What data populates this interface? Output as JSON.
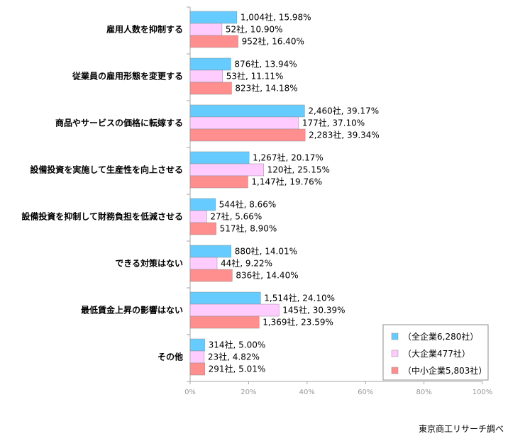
{
  "chart_data": {
    "type": "bar",
    "orientation": "horizontal",
    "categories": [
      "雇用人数を抑制する",
      "従業員の雇用形態を変更する",
      "商品やサービスの価格に転嫁する",
      "設備投資を実施して生産性を向上させる",
      "設備投資を抑制して財務負担を低減させる",
      "できる対策はない",
      "最低賃金上昇の影響はない",
      "その他"
    ],
    "series": [
      {
        "name": "（全企業6,280社）",
        "color": "#66ccff",
        "values": [
          15.98,
          13.94,
          39.17,
          20.17,
          8.66,
          14.01,
          24.1,
          5.0
        ],
        "labels": [
          "1,004社, 15.98%",
          "876社, 13.94%",
          "2,460社, 39.17%",
          "1,267社, 20.17%",
          "544社, 8.66%",
          "880社, 14.01%",
          "1,514社, 24.10%",
          "314社, 5.00%"
        ]
      },
      {
        "name": "（大企業477社）",
        "color": "#ffccff",
        "values": [
          10.9,
          11.11,
          37.1,
          25.15,
          5.66,
          9.22,
          30.39,
          4.82
        ],
        "labels": [
          "52社, 10.90%",
          "53社, 11.11%",
          "177社, 37.10%",
          "120社, 25.15%",
          "27社, 5.66%",
          "44社, 9.22%",
          "145社, 30.39%",
          "23社, 4.82%"
        ]
      },
      {
        "name": "（中小企業5,803社）",
        "color": "#ff8e8e",
        "values": [
          16.4,
          14.18,
          39.34,
          19.76,
          8.9,
          14.4,
          23.59,
          5.01
        ],
        "labels": [
          "952社, 16.40%",
          "823社, 14.18%",
          "2,283社, 39.34%",
          "1,147社, 19.76%",
          "517社, 8.90%",
          "836社, 14.40%",
          "1,369社, 23.59%",
          "291社, 5.01%"
        ]
      }
    ],
    "xlim": [
      0,
      100
    ],
    "xticks": [
      "0%",
      "20%",
      "40%",
      "60%",
      "80%",
      "100%"
    ],
    "grid": false,
    "legend_position": "bottom-right"
  },
  "source_note": "東京商工リサーチ調べ"
}
